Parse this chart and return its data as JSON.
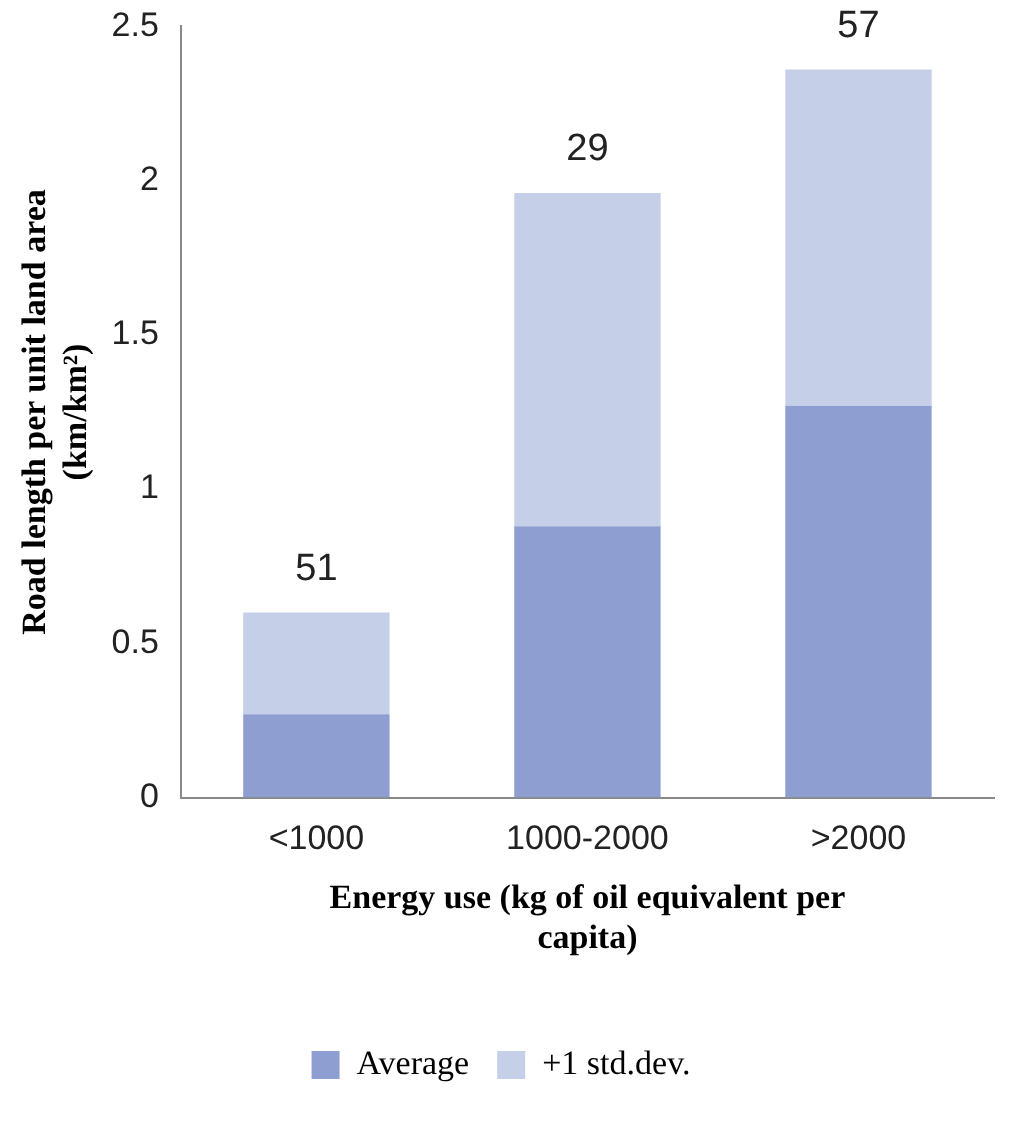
{
  "chart_data": {
    "type": "bar",
    "stacked": true,
    "categories": [
      "<1000",
      "1000-2000",
      ">2000"
    ],
    "series": [
      {
        "name": "Average",
        "color": "#8e9ed0",
        "values": [
          0.27,
          0.88,
          1.27
        ]
      },
      {
        "name": "+1 std.dev.",
        "color": "#c5cfe8",
        "values": [
          0.33,
          1.08,
          1.09
        ]
      }
    ],
    "ylabel": "Road length per unit land area (km/km²)",
    "xlabel": "Energy use (kg of oil equivalent per capita)",
    "ylim": [
      0,
      2.5
    ],
    "yticks": [
      0,
      0.5,
      1,
      1.5,
      2,
      2.5
    ],
    "grid": false,
    "legend": "bottom",
    "annotations": [
      {
        "text": "51",
        "x": "<1000",
        "y": 0.6
      },
      {
        "text": "29",
        "x": "1000-2000",
        "y": 1.96
      },
      {
        "text": "57",
        "x": ">2000",
        "y": 2.36
      }
    ]
  }
}
